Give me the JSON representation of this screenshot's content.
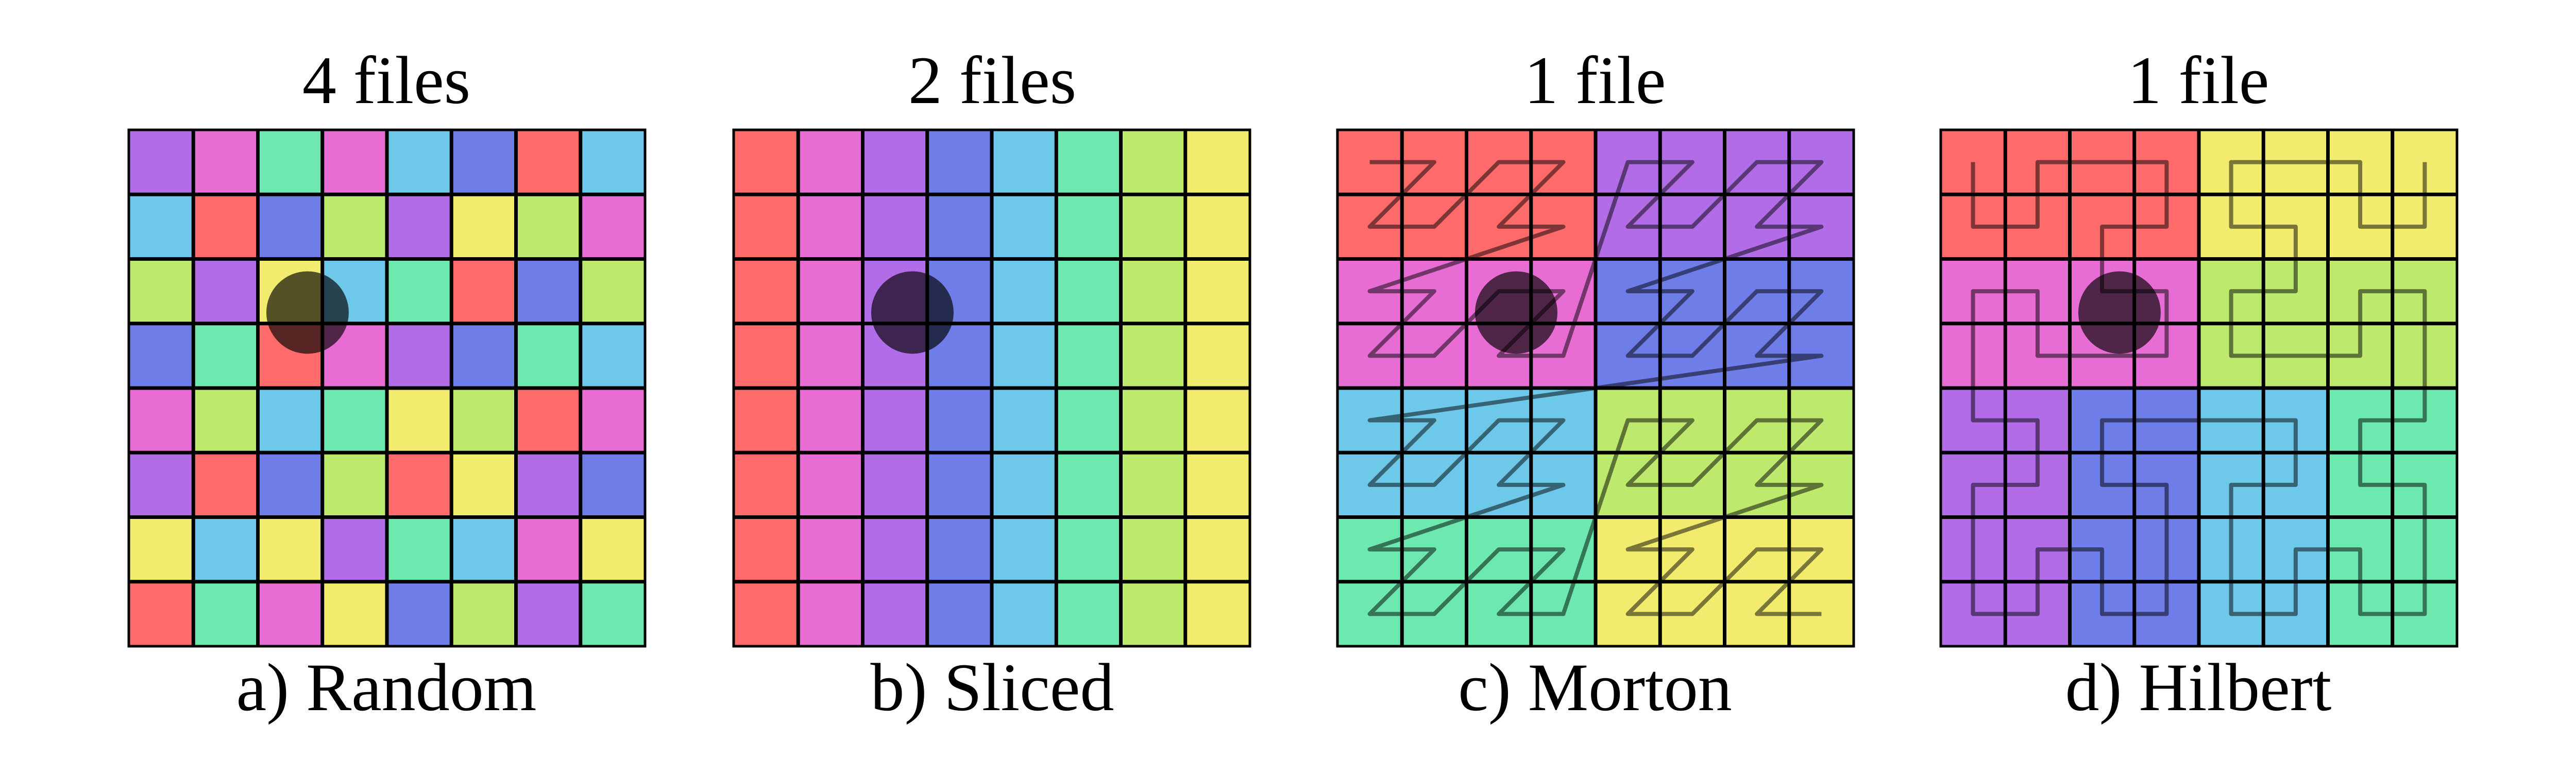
{
  "palette": {
    "red": "#FF6B6B",
    "pink": "#E76CD3",
    "purple": "#B26CE8",
    "blue": "#6E7DE8",
    "cyan": "#6DC8E9",
    "green": "#6DE8AE",
    "lime": "#BDE96D",
    "yellow": "#F2EC6E"
  },
  "query_marker_color": "#000000",
  "curve_color": "#000000",
  "panels": [
    {
      "title": "4 files",
      "caption": "a) Random",
      "grid": [
        [
          "purple",
          "pink",
          "green",
          "pink",
          "cyan",
          "blue",
          "red",
          "cyan"
        ],
        [
          "cyan",
          "red",
          "blue",
          "lime",
          "purple",
          "yellow",
          "lime",
          "pink"
        ],
        [
          "lime",
          "purple",
          "yellow",
          "cyan",
          "green",
          "red",
          "blue",
          "lime"
        ],
        [
          "blue",
          "green",
          "red",
          "pink",
          "purple",
          "blue",
          "green",
          "cyan"
        ],
        [
          "pink",
          "lime",
          "cyan",
          "green",
          "yellow",
          "lime",
          "red",
          "pink"
        ],
        [
          "purple",
          "red",
          "blue",
          "lime",
          "red",
          "yellow",
          "purple",
          "blue"
        ],
        [
          "yellow",
          "cyan",
          "yellow",
          "purple",
          "green",
          "cyan",
          "pink",
          "yellow"
        ],
        [
          "red",
          "green",
          "pink",
          "yellow",
          "blue",
          "lime",
          "purple",
          "green"
        ]
      ],
      "curve": "none"
    },
    {
      "title": "2 files",
      "caption": "b) Sliced",
      "grid": [
        [
          "red",
          "pink",
          "purple",
          "blue",
          "cyan",
          "green",
          "lime",
          "yellow"
        ],
        [
          "red",
          "pink",
          "purple",
          "blue",
          "cyan",
          "green",
          "lime",
          "yellow"
        ],
        [
          "red",
          "pink",
          "purple",
          "blue",
          "cyan",
          "green",
          "lime",
          "yellow"
        ],
        [
          "red",
          "pink",
          "purple",
          "blue",
          "cyan",
          "green",
          "lime",
          "yellow"
        ],
        [
          "red",
          "pink",
          "purple",
          "blue",
          "cyan",
          "green",
          "lime",
          "yellow"
        ],
        [
          "red",
          "pink",
          "purple",
          "blue",
          "cyan",
          "green",
          "lime",
          "yellow"
        ],
        [
          "red",
          "pink",
          "purple",
          "blue",
          "cyan",
          "green",
          "lime",
          "yellow"
        ],
        [
          "red",
          "pink",
          "purple",
          "blue",
          "cyan",
          "green",
          "lime",
          "yellow"
        ]
      ],
      "curve": "none"
    },
    {
      "title": "1 file",
      "caption": "c) Morton",
      "grid": [
        [
          "red",
          "red",
          "red",
          "red",
          "purple",
          "purple",
          "purple",
          "purple"
        ],
        [
          "red",
          "red",
          "red",
          "red",
          "purple",
          "purple",
          "purple",
          "purple"
        ],
        [
          "pink",
          "pink",
          "pink",
          "pink",
          "blue",
          "blue",
          "blue",
          "blue"
        ],
        [
          "pink",
          "pink",
          "pink",
          "pink",
          "blue",
          "blue",
          "blue",
          "blue"
        ],
        [
          "cyan",
          "cyan",
          "cyan",
          "cyan",
          "lime",
          "lime",
          "lime",
          "lime"
        ],
        [
          "cyan",
          "cyan",
          "cyan",
          "cyan",
          "lime",
          "lime",
          "lime",
          "lime"
        ],
        [
          "green",
          "green",
          "green",
          "green",
          "yellow",
          "yellow",
          "yellow",
          "yellow"
        ],
        [
          "green",
          "green",
          "green",
          "green",
          "yellow",
          "yellow",
          "yellow",
          "yellow"
        ]
      ],
      "curve": "morton"
    },
    {
      "title": "1 file",
      "caption": "d) Hilbert",
      "grid": [
        [
          "red",
          "red",
          "red",
          "red",
          "yellow",
          "yellow",
          "yellow",
          "yellow"
        ],
        [
          "red",
          "red",
          "red",
          "red",
          "yellow",
          "yellow",
          "yellow",
          "yellow"
        ],
        [
          "pink",
          "pink",
          "pink",
          "pink",
          "lime",
          "lime",
          "lime",
          "lime"
        ],
        [
          "pink",
          "pink",
          "pink",
          "pink",
          "lime",
          "lime",
          "lime",
          "lime"
        ],
        [
          "purple",
          "purple",
          "blue",
          "blue",
          "cyan",
          "cyan",
          "green",
          "green"
        ],
        [
          "purple",
          "purple",
          "blue",
          "blue",
          "cyan",
          "cyan",
          "green",
          "green"
        ],
        [
          "purple",
          "purple",
          "blue",
          "blue",
          "cyan",
          "cyan",
          "green",
          "green"
        ],
        [
          "purple",
          "purple",
          "blue",
          "blue",
          "cyan",
          "cyan",
          "green",
          "green"
        ]
      ],
      "curve": "hilbert"
    }
  ]
}
